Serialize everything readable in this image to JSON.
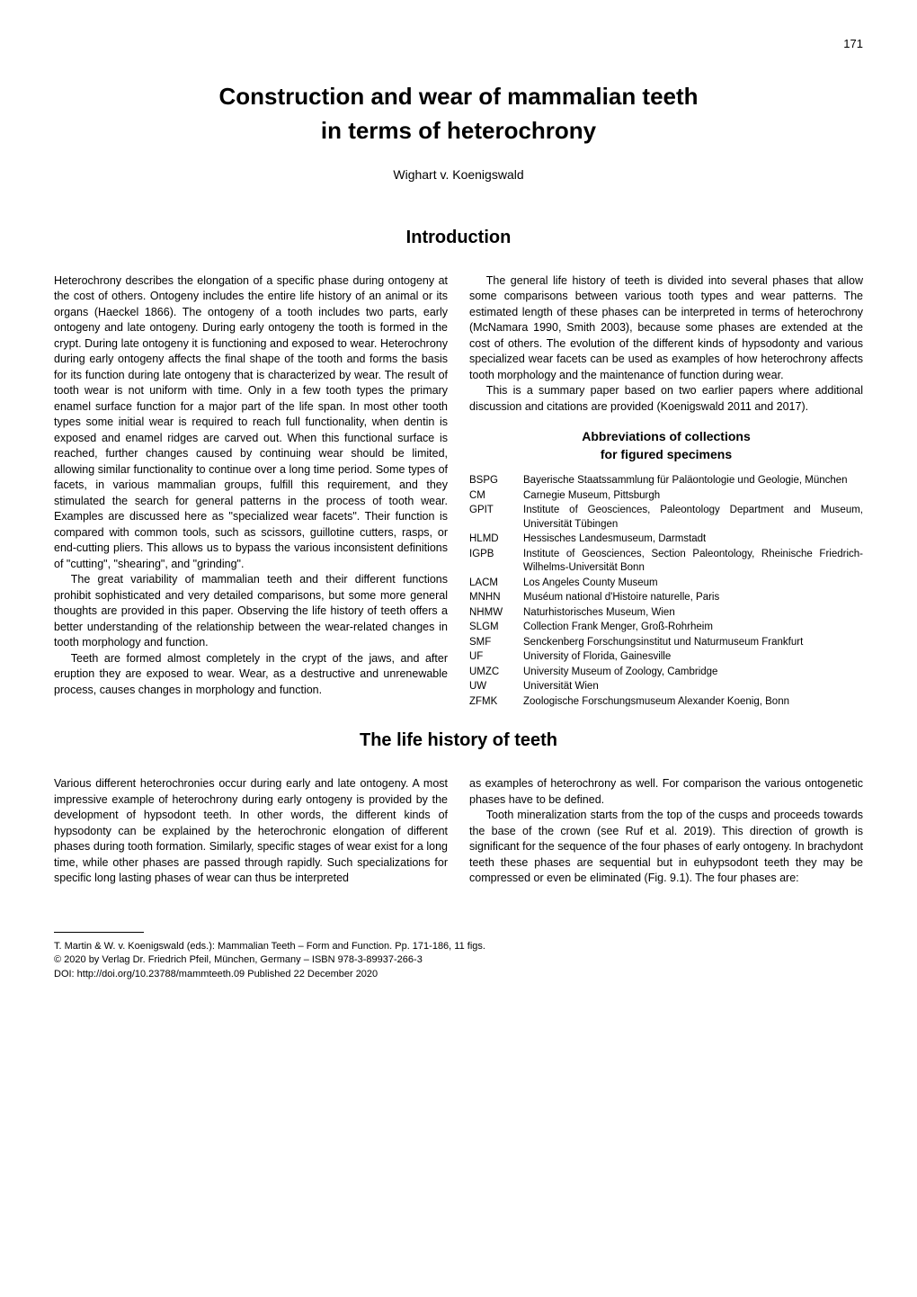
{
  "page_number": "171",
  "title_line1": "Construction and wear of mammalian teeth",
  "title_line2": "in terms of heterochrony",
  "author": "Wighart v. Koenigswald",
  "section_intro_heading": "Introduction",
  "intro_left_p1": "Heterochrony describes the elongation of a specific phase during ontogeny at the cost of others. Ontogeny includes the entire life history of an animal or its organs (Haeckel 1866). The ontogeny of a tooth includes two parts, early ontogeny and late ontogeny. During early ontogeny the tooth is formed in the crypt. During late ontogeny it is functioning and exposed to wear. Heterochrony during early ontogeny affects the final shape of the tooth and forms the basis for its function during late ontogeny that is characterized by wear. The result of tooth wear is not uniform with time. Only in a few tooth types the primary enamel surface function for a major part of the life span. In most other tooth types some initial wear is required to reach full functionality, when dentin is exposed and enamel ridges are carved out. When this functional surface is reached, further changes caused by continuing wear should be limited, allowing similar functionality to continue over a long time period. Some types of facets, in various mammalian groups, fulfill this requirement, and they stimulated the search for general patterns in the process of tooth wear. Examples are discussed here as \"specialized wear facets\". Their function is compared with common tools, such as scissors, guillotine cutters, rasps, or end-cutting pliers. This allows us to bypass the various inconsistent definitions of \"cutting\", \"shearing\", and \"grinding\".",
  "intro_left_p2": "The great variability of mammalian teeth and their different functions prohibit sophisticated and very detailed comparisons, but some more general thoughts are provided in this paper. Observing the life history of teeth offers a better understanding of the relationship between the wear-related changes in tooth morphology and function.",
  "intro_left_p3": "Teeth are formed almost completely in the crypt of the jaws, and after eruption they are exposed to wear. Wear, as a destructive and unrenewable process, causes changes in morphology and function.",
  "intro_right_p1": "The general life history of teeth is divided into several phases that allow some comparisons between various tooth types and wear patterns. The estimated length of these phases can be interpreted in terms of heterochrony (McNamara 1990, Smith 2003), because some phases are extended at the cost of others. The evolution of the different kinds of hypsodonty and various specialized wear facets can be used as examples of how heterochrony affects tooth morphology and the maintenance of function during wear.",
  "intro_right_p2": "This is a summary paper based on two earlier papers where additional discussion and citations are provided (Koenigswald 2011 and 2017).",
  "abbr_heading_line1": "Abbreviations of collections",
  "abbr_heading_line2": "for figured specimens",
  "abbreviations": [
    {
      "code": "BSPG",
      "desc": "Bayerische Staatssammlung für Paläontologie und Geologie, München"
    },
    {
      "code": "CM",
      "desc": "Carnegie Museum, Pittsburgh"
    },
    {
      "code": "GPIT",
      "desc": "Institute of Geosciences, Paleontology Department and Museum, Universität Tübingen"
    },
    {
      "code": "HLMD",
      "desc": "Hessisches Landesmuseum, Darmstadt"
    },
    {
      "code": "IGPB",
      "desc": "Institute of Geosciences, Section Paleontology, Rheinische Friedrich-Wilhelms-Universität Bonn"
    },
    {
      "code": "LACM",
      "desc": "Los Angeles County Museum"
    },
    {
      "code": "MNHN",
      "desc": "Muséum national d'Histoire naturelle, Paris"
    },
    {
      "code": "NHMW",
      "desc": "Naturhistorisches Museum, Wien"
    },
    {
      "code": "SLGM",
      "desc": "Collection Frank Menger, Groß-Rohrheim"
    },
    {
      "code": "SMF",
      "desc": "Senckenberg Forschungsinstitut und Naturmuseum Frankfurt"
    },
    {
      "code": "UF",
      "desc": "University of Florida, Gainesville"
    },
    {
      "code": "UMZC",
      "desc": "University Museum of Zoology, Cambridge"
    },
    {
      "code": "UW",
      "desc": "Universität Wien"
    },
    {
      "code": "ZFMK",
      "desc": "Zoologische Forschungsmuseum Alexander Koenig, Bonn"
    }
  ],
  "section_life_heading": "The life history of teeth",
  "life_left_p1": "Various different heterochronies occur during early and late ontogeny. A most impressive example of heterochrony during early ontogeny is provided by the development of hypsodont teeth. In other words, the different kinds of hypsodonty can be explained by the heterochronic elongation of different phases during tooth formation. Similarly, specific stages of wear exist for a long time, while other phases are passed through rapidly. Such specializations for specific long lasting phases of wear can thus be interpreted",
  "life_right_p1": "as examples of heterochrony as well. For comparison the various ontogenetic phases have to be defined.",
  "life_right_p2": "Tooth mineralization starts from the top of the cusps and proceeds towards the base of the crown (see Ruf et al. 2019). This direction of growth is significant for the sequence of the four phases of early ontogeny. In brachydont teeth these phases are sequential but in euhypsodont teeth they may be compressed or even be eliminated (Fig. 9.1). The four phases are:",
  "footer_line1": "T. Martin & W. v. Koenigswald (eds.): Mammalian Teeth – Form and Function. Pp. 171-186, 11 figs.",
  "footer_line2": "© 2020 by Verlag Dr. Friedrich Pfeil, München, Germany – ISBN 978-3-89937-266-3",
  "footer_line3": "DOI: http://doi.org/10.23788/mammteeth.09   Published 22 December 2020"
}
